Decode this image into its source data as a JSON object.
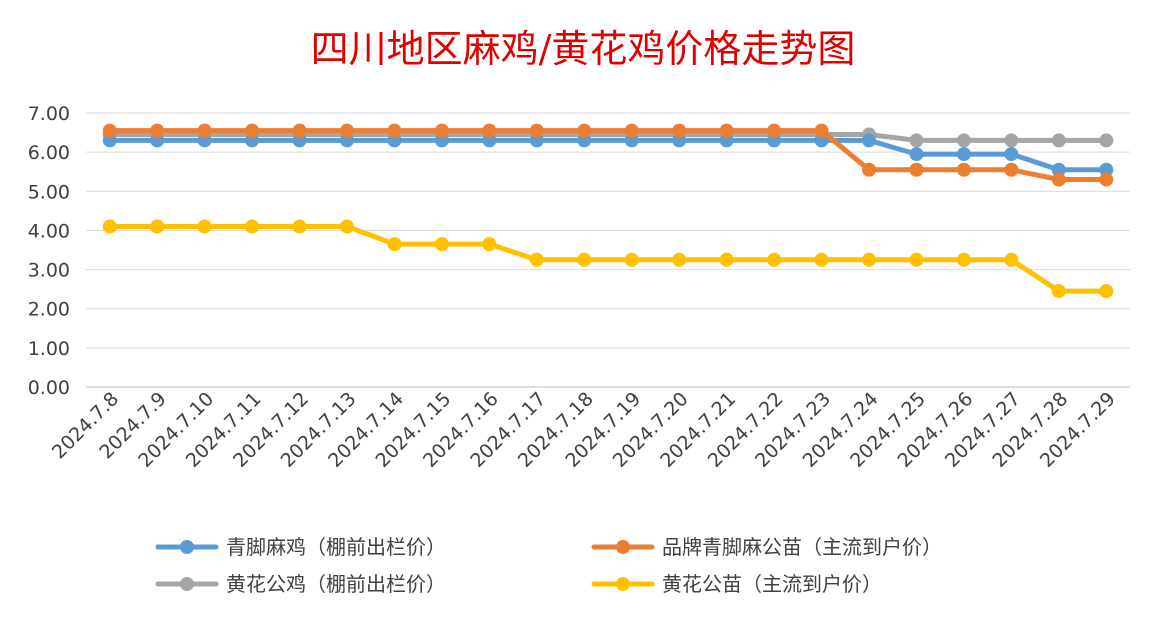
{
  "chart_data": {
    "type": "line",
    "title": "四川地区麻鸡/黄花鸡价格走势图",
    "xlabel": "",
    "ylabel": "",
    "ylim": [
      0,
      7
    ],
    "yticks": [
      "0.00",
      "1.00",
      "2.00",
      "3.00",
      "4.00",
      "5.00",
      "6.00",
      "7.00"
    ],
    "categories": [
      "2024.7.8",
      "2024.7.9",
      "2024.7.10",
      "2024.7.11",
      "2024.7.12",
      "2024.7.13",
      "2024.7.14",
      "2024.7.15",
      "2024.7.16",
      "2024.7.17",
      "2024.7.18",
      "2024.7.19",
      "2024.7.20",
      "2024.7.21",
      "2024.7.22",
      "2024.7.23",
      "2024.7.24",
      "2024.7.25",
      "2024.7.26",
      "2024.7.27",
      "2024.7.28",
      "2024.7.29"
    ],
    "grid": true,
    "legend_position": "bottom",
    "series": [
      {
        "name": "青脚麻鸡（棚前出栏价）",
        "color": "#5B9BD5",
        "values": [
          6.3,
          6.3,
          6.3,
          6.3,
          6.3,
          6.3,
          6.3,
          6.3,
          6.3,
          6.3,
          6.3,
          6.3,
          6.3,
          6.3,
          6.3,
          6.3,
          6.3,
          5.95,
          5.95,
          5.95,
          5.55,
          5.55
        ]
      },
      {
        "name": "品牌青脚麻公苗（主流到户价）",
        "color": "#ED7D31",
        "values": [
          6.55,
          6.55,
          6.55,
          6.55,
          6.55,
          6.55,
          6.55,
          6.55,
          6.55,
          6.55,
          6.55,
          6.55,
          6.55,
          6.55,
          6.55,
          6.55,
          5.55,
          5.55,
          5.55,
          5.55,
          5.3,
          5.3
        ]
      },
      {
        "name": "黄花公鸡（棚前出栏价）",
        "color": "#A5A5A5",
        "values": [
          6.45,
          6.45,
          6.45,
          6.45,
          6.45,
          6.45,
          6.45,
          6.45,
          6.45,
          6.45,
          6.45,
          6.45,
          6.45,
          6.45,
          6.45,
          6.45,
          6.45,
          6.3,
          6.3,
          6.3,
          6.3,
          6.3
        ]
      },
      {
        "name": "黄花公苗（主流到户价）",
        "color": "#FFC000",
        "values": [
          4.1,
          4.1,
          4.1,
          4.1,
          4.1,
          4.1,
          3.65,
          3.65,
          3.65,
          3.25,
          3.25,
          3.25,
          3.25,
          3.25,
          3.25,
          3.25,
          3.25,
          3.25,
          3.25,
          3.25,
          2.45,
          2.45
        ]
      }
    ]
  }
}
